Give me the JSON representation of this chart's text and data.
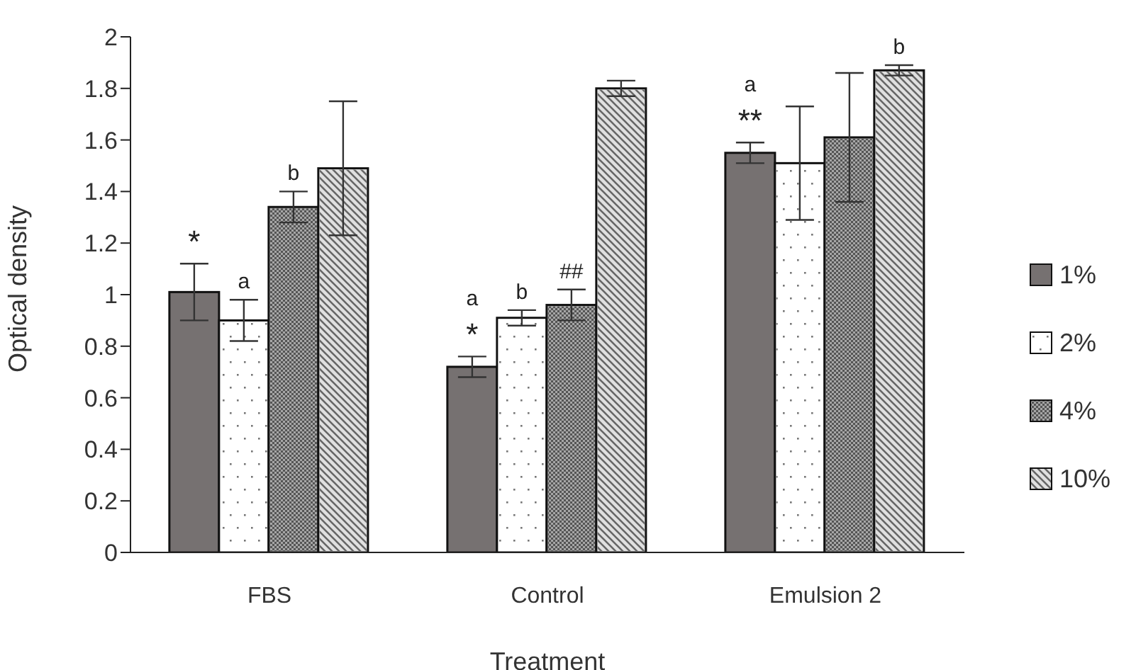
{
  "chart_data": {
    "type": "bar",
    "xlabel": "Treatment",
    "ylabel": "Optical density",
    "categories": [
      "FBS",
      "Control",
      "Emulsion 2"
    ],
    "series": [
      {
        "name": "1%",
        "color": "#767171",
        "values": [
          1.01,
          0.72,
          1.55
        ],
        "errors": [
          0.11,
          0.04,
          0.04
        ],
        "value_labels": [
          "*",
          "a\n*",
          "a\n**"
        ]
      },
      {
        "name": "2%",
        "color": "#ffffff",
        "values": [
          0.9,
          0.91,
          1.51
        ],
        "errors": [
          0.08,
          0.03,
          0.22
        ],
        "value_labels": [
          "a",
          "b",
          null
        ]
      },
      {
        "name": "4%",
        "color": "#a6a6a6",
        "values": [
          1.34,
          0.96,
          1.61
        ],
        "errors": [
          0.06,
          0.06,
          0.25
        ],
        "value_labels": [
          "b",
          "##",
          null
        ]
      },
      {
        "name": "10%",
        "color": "#e0e0e0",
        "values": [
          1.49,
          1.8,
          1.87
        ],
        "errors": [
          0.26,
          0.03,
          0.02
        ],
        "value_labels": [
          null,
          null,
          "b"
        ]
      }
    ],
    "ylim": [
      0,
      2
    ],
    "yticks": [
      0,
      0.2,
      0.4,
      0.6,
      0.8,
      1,
      1.2,
      1.4,
      1.6,
      1.8,
      2
    ],
    "grid": false,
    "legend": "right"
  }
}
